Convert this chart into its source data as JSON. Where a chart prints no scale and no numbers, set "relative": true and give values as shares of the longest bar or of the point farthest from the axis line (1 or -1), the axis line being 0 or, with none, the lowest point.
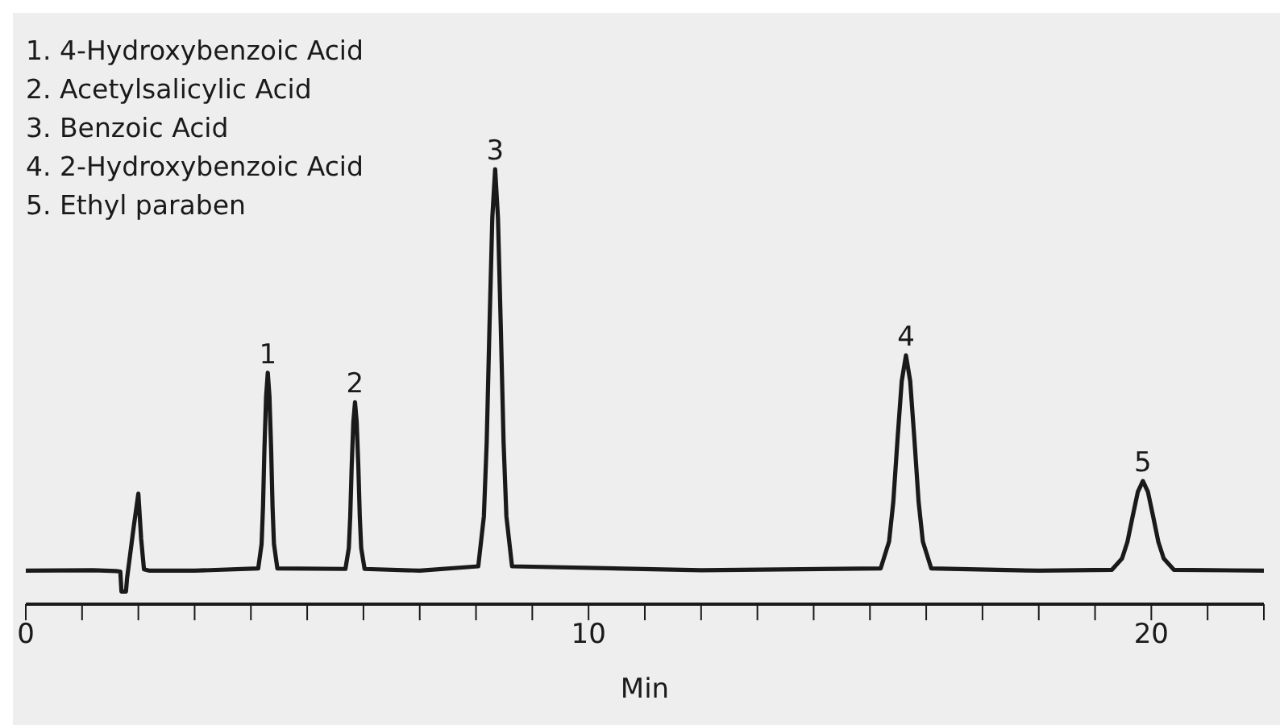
{
  "chart_data": {
    "type": "line",
    "relative": true,
    "xlabel": "Min",
    "annotations": [
      "1. 4-Hydroxybenzoic Acid",
      "2. Acetylsalicylic Acid",
      "3. Benzoic Acid",
      "4. 2-Hydroxybenzoic Acid",
      "5. Ethyl paraben",
      {
        "text": "1",
        "x": 4.3,
        "y": 0.532
      },
      {
        "text": "2",
        "x": 5.85,
        "y": 0.464
      },
      {
        "text": "3",
        "x": 8.34,
        "y": 1
      },
      {
        "text": "4",
        "x": 15.64,
        "y": 0.572
      },
      {
        "text": "5",
        "x": 19.85,
        "y": 0.283
      }
    ],
    "xlim": [
      0,
      22
    ],
    "xticks": [
      0,
      {
        "value": 1,
        "label": null
      },
      {
        "value": 2,
        "label": null
      },
      {
        "value": 3,
        "label": null
      },
      {
        "value": 4,
        "label": null
      },
      {
        "value": 5,
        "label": null
      },
      {
        "value": 6,
        "label": null
      },
      {
        "value": 7,
        "label": null
      },
      {
        "value": 8,
        "label": null
      },
      {
        "value": 9,
        "label": null
      },
      10,
      {
        "value": 11,
        "label": null
      },
      {
        "value": 12,
        "label": null
      },
      {
        "value": 13,
        "label": null
      },
      {
        "value": 14,
        "label": null
      },
      {
        "value": 15,
        "label": null
      },
      {
        "value": 16,
        "label": null
      },
      {
        "value": 17,
        "label": null
      },
      {
        "value": 18,
        "label": null
      },
      {
        "value": 19,
        "label": null
      },
      20,
      {
        "value": 21,
        "label": null
      },
      {
        "value": 22,
        "label": null
      }
    ],
    "grid": false,
    "legend": false,
    "marker": "none",
    "line_style": "solid",
    "series": [
      {
        "color": "#1a1a1a",
        "x": [
          0,
          1.2,
          1.6,
          1.68,
          1.7,
          1.78,
          1.8,
          1.92,
          2.0,
          2.05,
          2.1,
          2.2,
          3,
          4.13,
          4.19,
          4.215,
          4.24,
          4.27,
          4.3,
          4.33,
          4.36,
          4.385,
          4.41,
          4.47,
          5.68,
          5.74,
          5.765,
          5.79,
          5.82,
          5.85,
          5.88,
          5.91,
          5.935,
          5.96,
          6.02,
          7,
          8.04,
          8.14,
          8.19,
          8.24,
          8.29,
          8.34,
          8.39,
          8.44,
          8.49,
          8.54,
          8.64,
          12,
          15.19,
          15.34,
          15.415,
          15.49,
          15.565,
          15.64,
          15.715,
          15.79,
          15.865,
          15.94,
          16.09,
          18,
          19.3,
          19.48,
          19.575,
          19.67,
          19.76,
          19.85,
          19.94,
          20.03,
          20.125,
          20.22,
          20.4,
          22
        ],
        "values": [
          0.077,
          0.078,
          0.076,
          0.075,
          0.029,
          0.029,
          0.06,
          0.18,
          0.254,
          0.15,
          0.08,
          0.077,
          0.077,
          0.082,
          0.138,
          0.223,
          0.355,
          0.477,
          0.532,
          0.477,
          0.355,
          0.223,
          0.138,
          0.082,
          0.081,
          0.129,
          0.201,
          0.313,
          0.418,
          0.464,
          0.418,
          0.313,
          0.201,
          0.129,
          0.081,
          0.077,
          0.087,
          0.202,
          0.372,
          0.64,
          0.889,
          1,
          0.889,
          0.64,
          0.372,
          0.202,
          0.087,
          0.078,
          0.082,
          0.144,
          0.235,
          0.379,
          0.513,
          0.572,
          0.513,
          0.379,
          0.235,
          0.144,
          0.082,
          0.077,
          0.079,
          0.105,
          0.143,
          0.203,
          0.258,
          0.283,
          0.258,
          0.203,
          0.143,
          0.105,
          0.079,
          0.077
        ]
      }
    ]
  }
}
